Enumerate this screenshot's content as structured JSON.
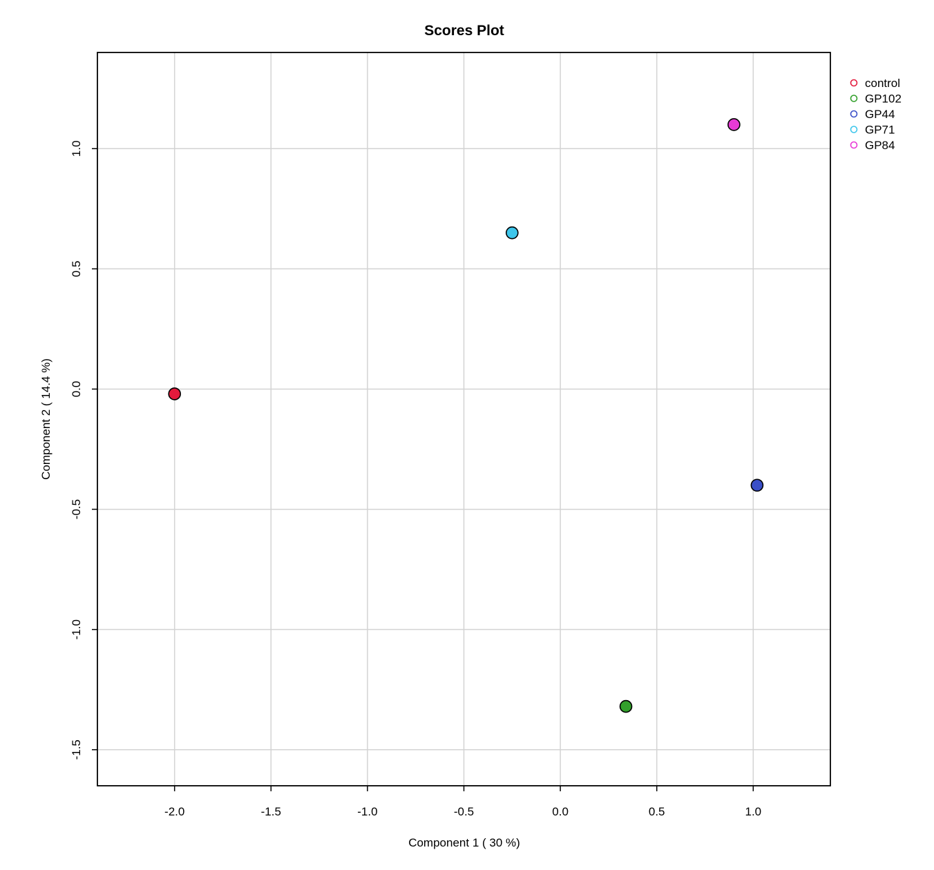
{
  "chart_data": {
    "type": "scatter",
    "title": "Scores Plot",
    "xlabel": "Component 1 ( 30 %)",
    "ylabel": "Component 2 ( 14.4 %)",
    "xlim": [
      -2.4,
      1.4
    ],
    "ylim": [
      -1.65,
      1.4
    ],
    "xticks": [
      -2.0,
      -1.5,
      -1.0,
      -0.5,
      0.0,
      0.5,
      1.0
    ],
    "xtick_labels": [
      "-2.0",
      "-1.5",
      "-1.0",
      "-0.5",
      "0.0",
      "0.5",
      "1.0"
    ],
    "yticks": [
      -1.5,
      -1.0,
      -0.5,
      0.0,
      0.5,
      1.0
    ],
    "ytick_labels": [
      "-1.5",
      "-1.0",
      "-0.5",
      "0.0",
      "0.5",
      "1.0"
    ],
    "grid": true,
    "legend_position": "top-right, outside plot",
    "series": [
      {
        "name": "control",
        "color": "#e31a3c",
        "points": [
          {
            "x": -2.0,
            "y": -0.02
          }
        ]
      },
      {
        "name": "GP102",
        "color": "#33a02c",
        "points": [
          {
            "x": 0.34,
            "y": -1.32
          }
        ]
      },
      {
        "name": "GP44",
        "color": "#3a4fc8",
        "points": [
          {
            "x": 1.02,
            "y": -0.4
          }
        ]
      },
      {
        "name": "GP71",
        "color": "#3ec6eb",
        "points": [
          {
            "x": -0.25,
            "y": 0.65
          }
        ]
      },
      {
        "name": "GP84",
        "color": "#e83ad6",
        "points": [
          {
            "x": 0.9,
            "y": 1.1
          }
        ]
      }
    ]
  }
}
